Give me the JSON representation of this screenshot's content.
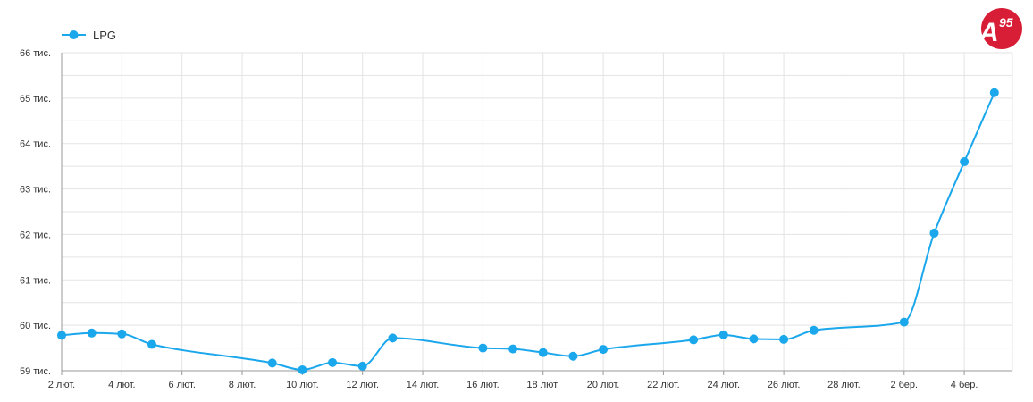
{
  "brand": {
    "logo_text": "A",
    "logo_sup": "95",
    "logo_color": "#d71e36"
  },
  "chart_data": {
    "type": "line",
    "series": [
      {
        "name": "LPG",
        "color": "#1aa7ec",
        "points": [
          {
            "d": 0,
            "y": 59780
          },
          {
            "d": 1,
            "y": 59830
          },
          {
            "d": 2,
            "y": 59810
          },
          {
            "d": 3,
            "y": 59580
          },
          {
            "d": 7,
            "y": 59170
          },
          {
            "d": 8,
            "y": 59020
          },
          {
            "d": 9,
            "y": 59180
          },
          {
            "d": 10,
            "y": 59100
          },
          {
            "d": 11,
            "y": 59720
          },
          {
            "d": 14,
            "y": 59500
          },
          {
            "d": 15,
            "y": 59480
          },
          {
            "d": 16,
            "y": 59400
          },
          {
            "d": 17,
            "y": 59320
          },
          {
            "d": 18,
            "y": 59470
          },
          {
            "d": 21,
            "y": 59680
          },
          {
            "d": 22,
            "y": 59790
          },
          {
            "d": 23,
            "y": 59700
          },
          {
            "d": 24,
            "y": 59690
          },
          {
            "d": 25,
            "y": 59890
          },
          {
            "d": 28,
            "y": 60070
          },
          {
            "d": 29,
            "y": 62030
          },
          {
            "d": 30,
            "y": 63600
          },
          {
            "d": 31,
            "y": 65120
          }
        ]
      }
    ],
    "x_ticks": [
      {
        "d": 0,
        "label": "2 лют."
      },
      {
        "d": 2,
        "label": "4 лют."
      },
      {
        "d": 4,
        "label": "6 лют."
      },
      {
        "d": 6,
        "label": "8 лют."
      },
      {
        "d": 8,
        "label": "10 лют."
      },
      {
        "d": 10,
        "label": "12 лют."
      },
      {
        "d": 12,
        "label": "14 лют."
      },
      {
        "d": 14,
        "label": "16 лют."
      },
      {
        "d": 16,
        "label": "18 лют."
      },
      {
        "d": 18,
        "label": "20 лют."
      },
      {
        "d": 20,
        "label": "22 лют."
      },
      {
        "d": 22,
        "label": "24 лют."
      },
      {
        "d": 24,
        "label": "26 лют."
      },
      {
        "d": 26,
        "label": "28 лют."
      },
      {
        "d": 28,
        "label": "2 бер."
      },
      {
        "d": 30,
        "label": "4 бер."
      }
    ],
    "y_ticks": [
      {
        "value": 59000,
        "label": "59 тис."
      },
      {
        "value": 60000,
        "label": "60 тис."
      },
      {
        "value": 61000,
        "label": "61 тис."
      },
      {
        "value": 62000,
        "label": "62 тис."
      },
      {
        "value": 63000,
        "label": "63 тис."
      },
      {
        "value": 64000,
        "label": "64 тис."
      },
      {
        "value": 65000,
        "label": "65 тис."
      },
      {
        "value": 66000,
        "label": "66 тис."
      }
    ],
    "ylim": [
      59000,
      66000
    ],
    "grid": true,
    "legend_position": "top-left"
  }
}
